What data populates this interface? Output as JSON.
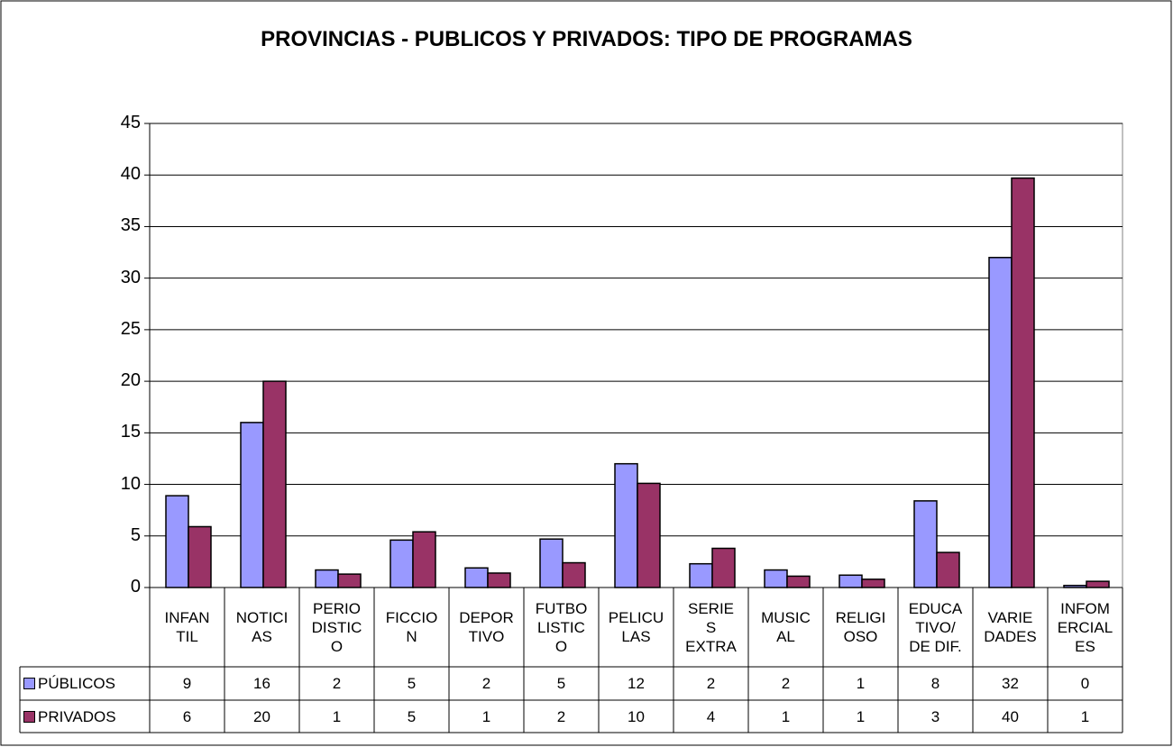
{
  "chart_data": {
    "type": "bar",
    "title": "PROVINCIAS - PUBLICOS Y PRIVADOS: TIPO DE PROGRAMAS",
    "categories": [
      "INFAN\nTIL",
      "NOTICI\nAS",
      "PERIO\nDISTIC\nO",
      "FICCIO\nN",
      "DEPOR\nTIVO",
      "FUTBO\nLISTIC\nO",
      "PELICU\nLAS",
      "SERIE\nS\nEXTRA",
      "MUSIC\nAL",
      "RELIGI\nOSO",
      "EDUCA\nTIVO/\nDE DIF.",
      "VARIE\nDADES",
      "INFOM\nERCIAL\nES"
    ],
    "series": [
      {
        "name": "PÚBLICOS",
        "color": "#9999ff",
        "values": [
          8.9,
          16.0,
          1.7,
          4.6,
          1.9,
          4.7,
          12.0,
          2.3,
          1.7,
          1.2,
          8.4,
          32.0,
          0.2
        ],
        "value_labels": [
          "9",
          "16",
          "2",
          "5",
          "2",
          "5",
          "12",
          "2",
          "2",
          "1",
          "8",
          "32",
          "0"
        ]
      },
      {
        "name": "PRIVADOS",
        "color": "#993366",
        "values": [
          5.9,
          20.0,
          1.3,
          5.4,
          1.4,
          2.4,
          10.1,
          3.8,
          1.1,
          0.8,
          3.4,
          39.7,
          0.6
        ],
        "value_labels": [
          "6",
          "20",
          "1",
          "5",
          "1",
          "2",
          "10",
          "4",
          "1",
          "1",
          "3",
          "40",
          "1"
        ]
      }
    ],
    "ylim": [
      0,
      45
    ],
    "yticks": [
      0,
      5,
      10,
      15,
      20,
      25,
      30,
      35,
      40,
      45
    ],
    "grid": true
  }
}
